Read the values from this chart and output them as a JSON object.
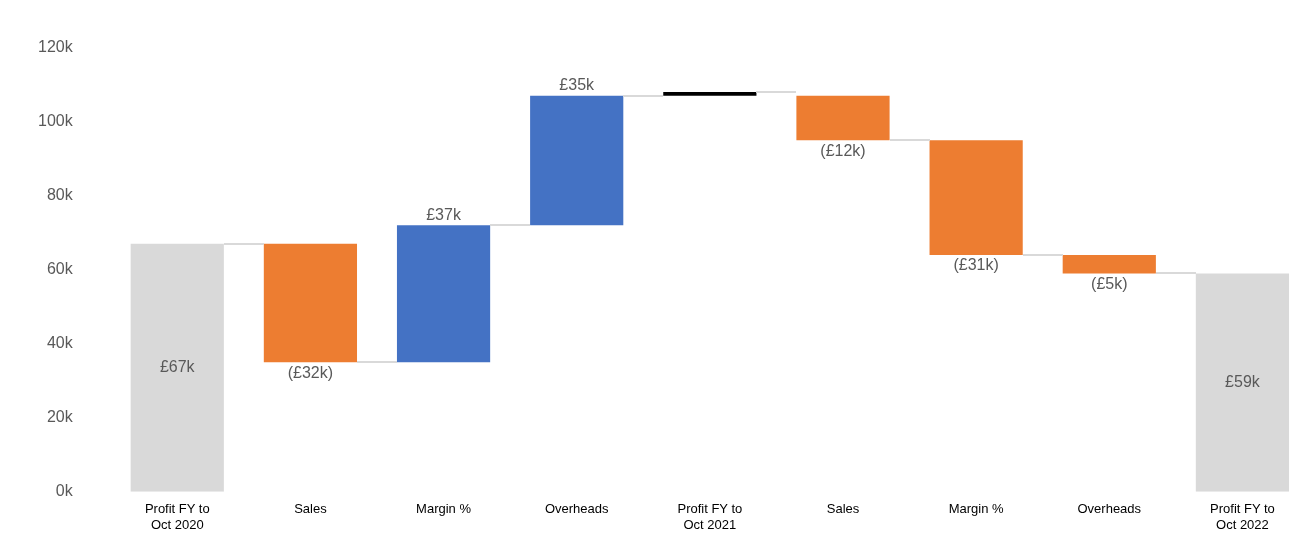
{
  "chart_data": {
    "type": "bar",
    "categories": [
      "Profit FY to Oct 2020",
      "Sales",
      "Margin %",
      "Overheads",
      "Profit FY to Oct 2021",
      "Sales",
      "Margin %",
      "Overheads",
      "Profit FY to Oct 2022"
    ],
    "base": [
      0,
      67,
      35,
      72,
      107,
      107,
      95,
      64,
      0
    ],
    "values": [
      67,
      -32,
      37,
      35,
      1,
      -12,
      -31,
      -5,
      59
    ],
    "colors": [
      "#d9d9d9",
      "#ed7d31",
      "#4472c4",
      "#4472c4",
      "#000000",
      "#ed7d31",
      "#ed7d31",
      "#ed7d31",
      "#d9d9d9"
    ],
    "value_labels": [
      "£67k",
      "(£32k)",
      "£37k",
      "£35k",
      null,
      "(£12k)",
      "(£31k)",
      "(£5k)",
      "£59k"
    ],
    "ylim": [
      0,
      120
    ],
    "yticks": [
      {
        "value": 0,
        "label": "0k"
      },
      {
        "value": 20,
        "label": "20k"
      },
      {
        "value": 40,
        "label": "40k"
      },
      {
        "value": 60,
        "label": "60k"
      },
      {
        "value": 80,
        "label": "80k"
      },
      {
        "value": 100,
        "label": "100k"
      },
      {
        "value": 120,
        "label": "120k"
      }
    ],
    "grid": false,
    "legend": false
  }
}
